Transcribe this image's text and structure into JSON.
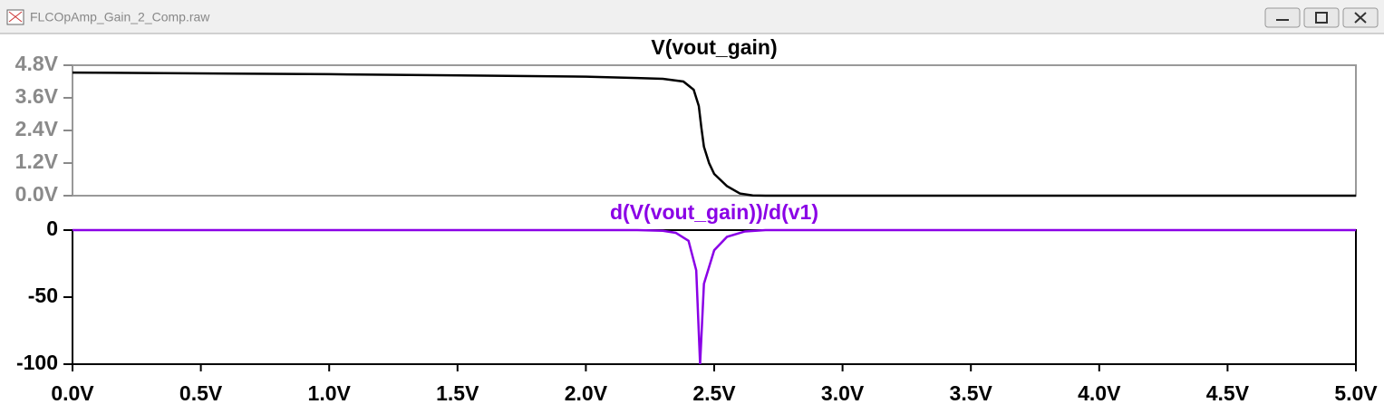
{
  "window": {
    "title": "FLCOpAmp_Gain_2_Comp.raw"
  },
  "chart_data": [
    {
      "type": "line",
      "title": "V(vout_gain)",
      "xlim": [
        0,
        5
      ],
      "ylim": [
        0,
        4.8
      ],
      "yticks": [
        {
          "value": 0,
          "label": "0.0V"
        },
        {
          "value": 1.2,
          "label": "1.2V"
        },
        {
          "value": 2.4,
          "label": "2.4V"
        },
        {
          "value": 3.6,
          "label": "3.6V"
        },
        {
          "value": 4.8,
          "label": "4.8V"
        }
      ],
      "series": [
        {
          "color": "#000000",
          "x": [
            0,
            1.0,
            2.0,
            2.2,
            2.3,
            2.38,
            2.42,
            2.44,
            2.45,
            2.46,
            2.48,
            2.5,
            2.55,
            2.6,
            2.65,
            2.7,
            5.0
          ],
          "values": [
            4.53,
            4.47,
            4.38,
            4.33,
            4.3,
            4.2,
            3.9,
            3.3,
            2.5,
            1.8,
            1.2,
            0.8,
            0.35,
            0.08,
            0.01,
            0,
            0
          ]
        }
      ]
    },
    {
      "type": "line",
      "title": "d(V(vout_gain))/d(v1)",
      "title_color": "#8a00e6",
      "xlim": [
        0,
        5
      ],
      "xticks": [
        {
          "value": 0,
          "label": "0.0V"
        },
        {
          "value": 0.5,
          "label": "0.5V"
        },
        {
          "value": 1.0,
          "label": "1.0V"
        },
        {
          "value": 1.5,
          "label": "1.5V"
        },
        {
          "value": 2.0,
          "label": "2.0V"
        },
        {
          "value": 2.5,
          "label": "2.5V"
        },
        {
          "value": 3.0,
          "label": "3.0V"
        },
        {
          "value": 3.5,
          "label": "3.5V"
        },
        {
          "value": 4.0,
          "label": "4.0V"
        },
        {
          "value": 4.5,
          "label": "4.5V"
        },
        {
          "value": 5.0,
          "label": "5.0V"
        }
      ],
      "ylim": [
        -100,
        0
      ],
      "yticks": [
        -100,
        -50,
        0
      ],
      "series": [
        {
          "color": "#8a00e6",
          "x": [
            0,
            2.2,
            2.3,
            2.35,
            2.4,
            2.43,
            2.445,
            2.46,
            2.5,
            2.55,
            2.62,
            2.7,
            5.0
          ],
          "values": [
            0,
            0,
            -0.5,
            -2,
            -8,
            -30,
            -100,
            -40,
            -15,
            -5,
            -1,
            0,
            0
          ]
        }
      ]
    }
  ]
}
